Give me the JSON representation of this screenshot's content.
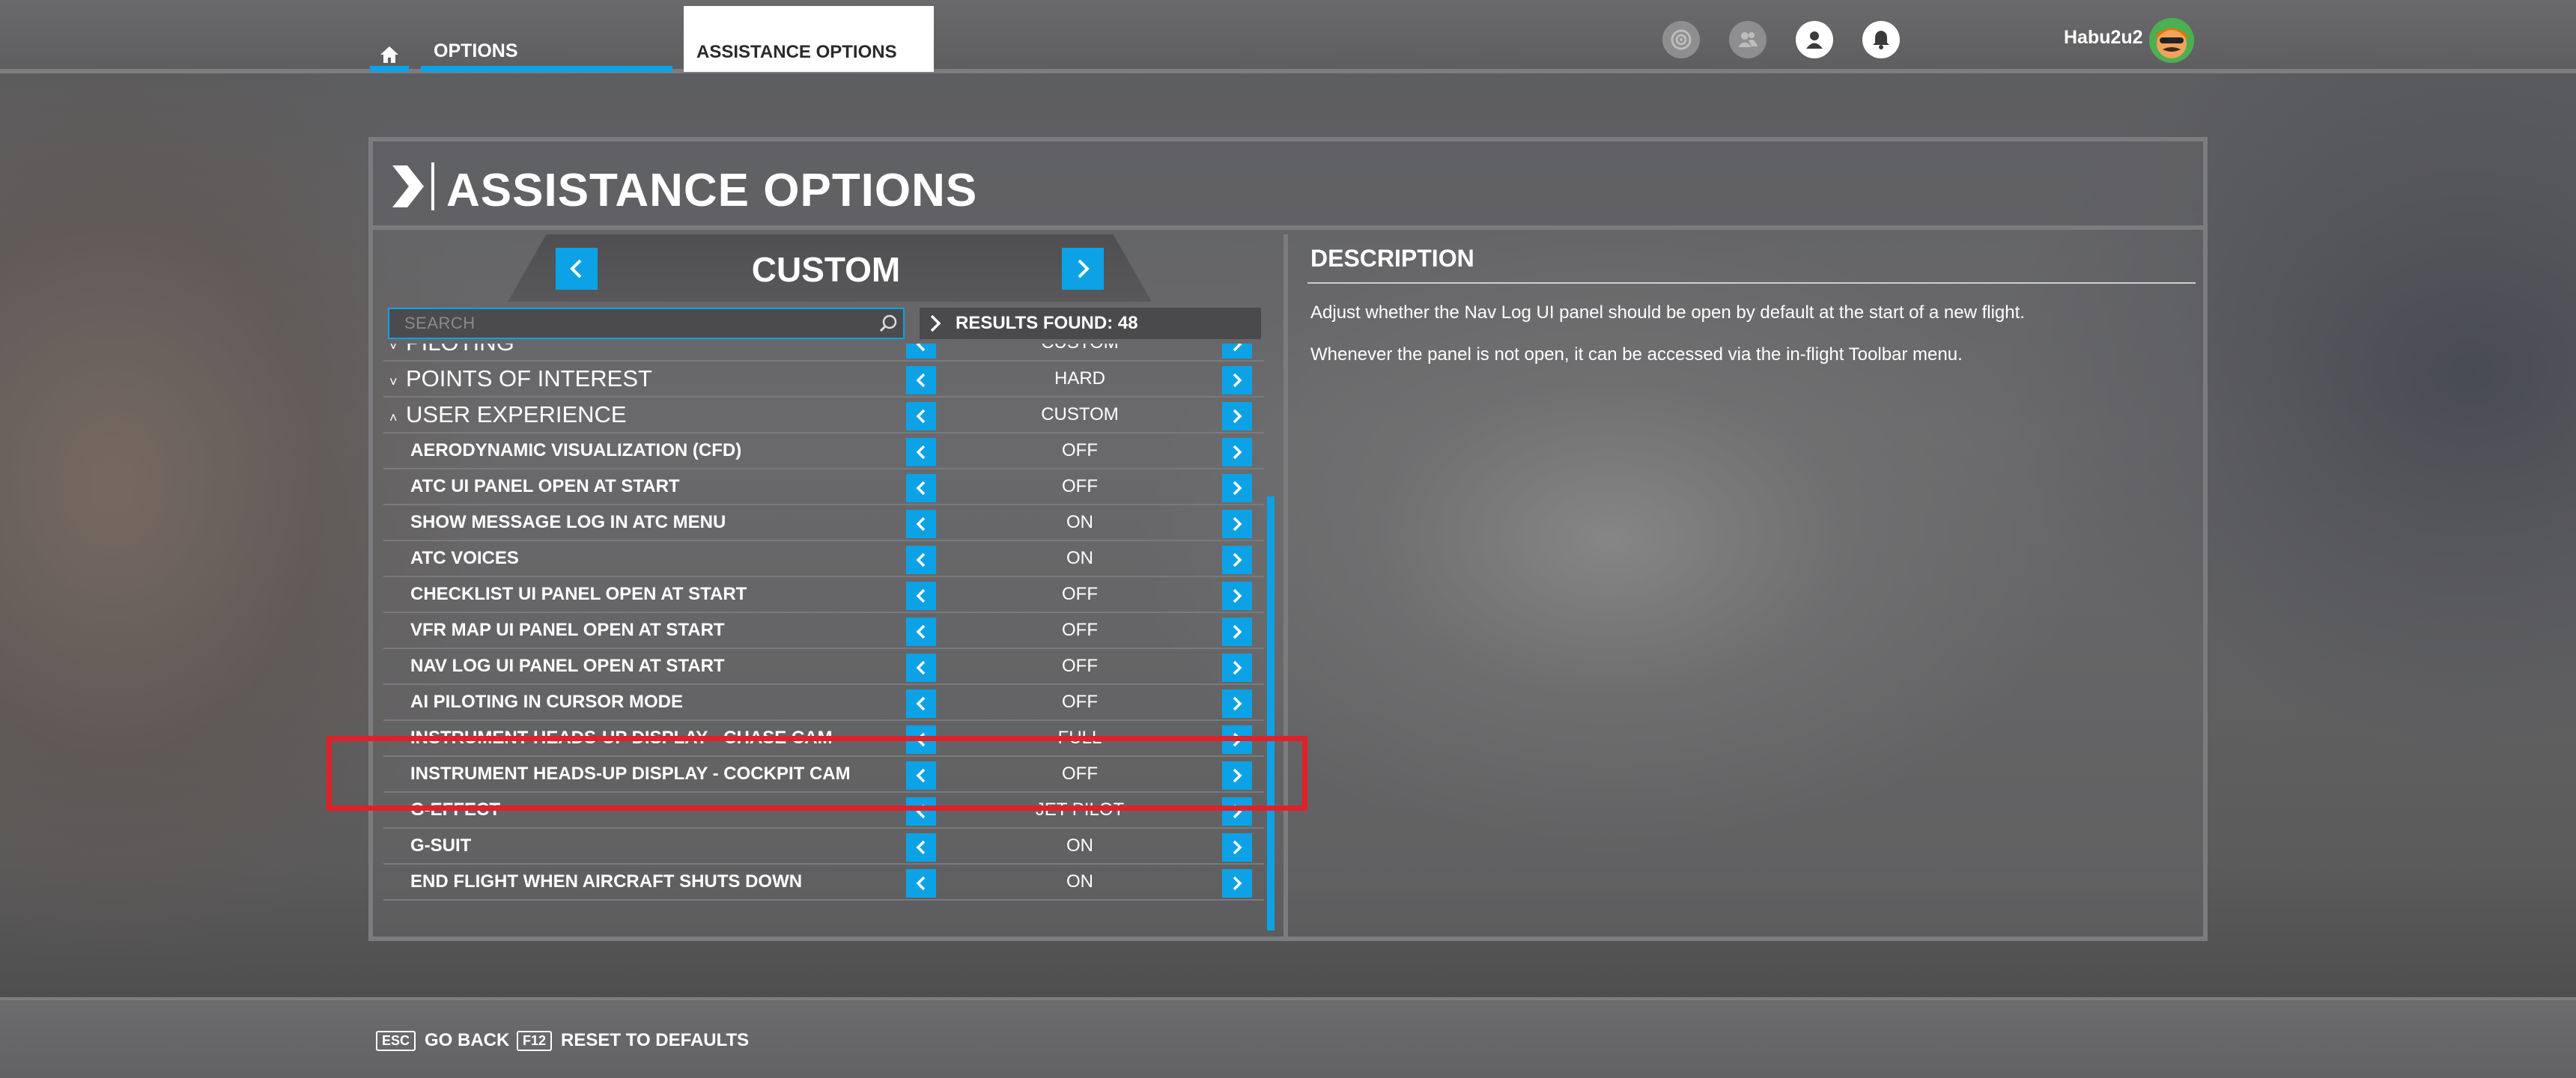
{
  "topbar": {
    "home_tab": "home",
    "tab_options": "OPTIONS",
    "tab_assistance": "ASSISTANCE OPTIONS",
    "username": "Habu2u2",
    "accent": "#0da2e6"
  },
  "header": {
    "title": "ASSISTANCE OPTIONS"
  },
  "preset": {
    "label": "CUSTOM"
  },
  "search": {
    "placeholder": "SEARCH"
  },
  "results": {
    "label": "RESULTS FOUND: 48"
  },
  "rows": [
    {
      "name": "PILOTING",
      "value": "CUSTOM",
      "category": true,
      "expanded": false
    },
    {
      "name": "POINTS OF INTEREST",
      "value": "HARD",
      "category": true,
      "expanded": false
    },
    {
      "name": "USER EXPERIENCE",
      "value": "CUSTOM",
      "category": true,
      "expanded": true
    },
    {
      "name": "AERODYNAMIC VISUALIZATION (CFD)",
      "value": "OFF"
    },
    {
      "name": "ATC UI PANEL OPEN AT START",
      "value": "OFF"
    },
    {
      "name": "SHOW MESSAGE LOG IN ATC MENU",
      "value": "ON"
    },
    {
      "name": "ATC VOICES",
      "value": "ON"
    },
    {
      "name": "CHECKLIST UI PANEL OPEN AT START",
      "value": "OFF"
    },
    {
      "name": "VFR MAP UI PANEL OPEN AT START",
      "value": "OFF"
    },
    {
      "name": "NAV LOG UI PANEL OPEN AT START",
      "value": "OFF"
    },
    {
      "name": "AI PILOTING IN CURSOR MODE",
      "value": "OFF"
    },
    {
      "name": "INSTRUMENT HEADS-UP DISPLAY - CHASE CAM",
      "value": "FULL"
    },
    {
      "name": "INSTRUMENT HEADS-UP DISPLAY - COCKPIT CAM",
      "value": "OFF"
    },
    {
      "name": "G-EFFECT",
      "value": "JET PILOT"
    },
    {
      "name": "G-SUIT",
      "value": "ON"
    },
    {
      "name": "END FLIGHT WHEN AIRCRAFT SHUTS DOWN",
      "value": "ON"
    }
  ],
  "description": {
    "title": "DESCRIPTION",
    "p1": "Adjust whether the Nav Log UI panel should be open by default at the start of a new flight.",
    "p2": "Whenever the panel is not open, it can be accessed via the in-flight Toolbar menu."
  },
  "footer": {
    "back_key": "ESC",
    "back_label": "GO BACK",
    "reset_key": "F12",
    "reset_label": "RESET TO DEFAULTS"
  },
  "highlight_color": "#e1202a"
}
